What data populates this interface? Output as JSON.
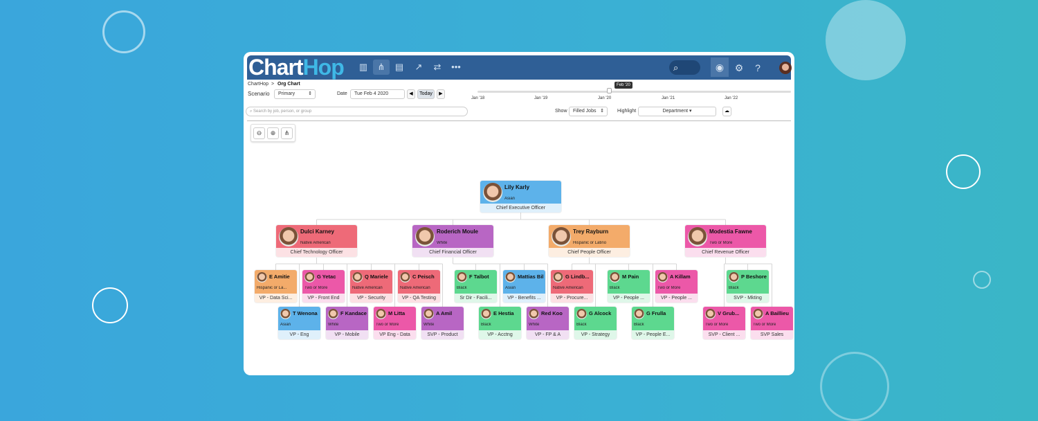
{
  "app": {
    "logo": "ChartHop",
    "nav_icons": [
      "bar-chart-icon",
      "org-chart-icon",
      "table-icon",
      "trend-chart-icon",
      "shuffle-icon",
      "more-icon"
    ],
    "active_nav": 1,
    "right_icons": [
      "eye-icon",
      "gear-icon",
      "help-icon"
    ]
  },
  "breadcrumb": {
    "root": "ChartHop",
    "sep": ">",
    "current": "Org Chart"
  },
  "controls": {
    "scenario_label": "Scenario",
    "scenario_value": "Primary",
    "date_label": "Date",
    "date_value": "Tue Feb 4 2020",
    "prev": "◀",
    "today": "Today",
    "next": "▶",
    "search_placeholder": "Search by job, person, or group",
    "show_label": "Show",
    "show_value": "Filled Jobs",
    "highlight_label": "Highlight",
    "highlight_value": "Department"
  },
  "timeline": {
    "ticks": [
      "Jan '18",
      "Jan '19",
      "Jan '20",
      "Jan '21",
      "Jan '22"
    ],
    "tooltip": "Feb '20"
  },
  "colors": {
    "blue": "#5db2ea",
    "red": "#ee6a78",
    "purple": "#b866c4",
    "orange": "#f3ab6a",
    "pink": "#ec58a8",
    "green": "#5dd88f",
    "header": "#2f5f96"
  },
  "people": [
    {
      "name": "Lily Karly",
      "demo": "Asian",
      "title": "Chief Executive Officer",
      "color": "blue"
    },
    {
      "name": "Dulci Karney",
      "demo": "Native American",
      "title": "Chief Technology Officer",
      "color": "red"
    },
    {
      "name": "Roderich Moule",
      "demo": "White",
      "title": "Chief Financial Officer",
      "color": "purple"
    },
    {
      "name": "Trey Rayburn",
      "demo": "Hispanic or Latino",
      "title": "Chief People Officer",
      "color": "orange"
    },
    {
      "name": "Modestia Fawne",
      "demo": "Two or More",
      "title": "Chief Revenue Officer",
      "color": "pink"
    },
    {
      "name": "E Amitie",
      "demo": "Hispanic or La...",
      "title": "VP - Data Sci...",
      "color": "orange"
    },
    {
      "name": "G Yetac",
      "demo": "Two or More",
      "title": "VP - Front End",
      "color": "pink"
    },
    {
      "name": "Q Mariele",
      "demo": "Native American",
      "title": "VP - Security",
      "color": "red"
    },
    {
      "name": "C Peisch",
      "demo": "Native American",
      "title": "VP - QA Testing",
      "color": "red"
    },
    {
      "name": "F Talbot",
      "demo": "Black",
      "title": "Sr Dir - Facili...",
      "color": "green"
    },
    {
      "name": "Mattias Bil",
      "demo": "Asian",
      "title": "VP - Benefits ...",
      "color": "blue"
    },
    {
      "name": "G Lindb...",
      "demo": "Native American",
      "title": "VP - Procure...",
      "color": "red"
    },
    {
      "name": "M Pain",
      "demo": "Black",
      "title": "VP - People ...",
      "color": "green"
    },
    {
      "name": "A Killam",
      "demo": "Two or More",
      "title": "VP - People ...",
      "color": "pink"
    },
    {
      "name": "P Beshore",
      "demo": "Black",
      "title": "SVP - Mkting",
      "color": "green"
    },
    {
      "name": "T Wenona",
      "demo": "Asian",
      "title": "VP - Eng",
      "color": "blue"
    },
    {
      "name": "F Kandace",
      "demo": "White",
      "title": "VP - Mobile",
      "color": "purple"
    },
    {
      "name": "M Litta",
      "demo": "Two or More",
      "title": "VP Eng - Data",
      "color": "pink"
    },
    {
      "name": "A Amil",
      "demo": "White",
      "title": "SVP - Product",
      "color": "purple"
    },
    {
      "name": "E Hestia",
      "demo": "Black",
      "title": "VP - Acctng",
      "color": "green"
    },
    {
      "name": "Red Koo",
      "demo": "White",
      "title": "VP - FP & A",
      "color": "purple"
    },
    {
      "name": "G Alcock",
      "demo": "Black",
      "title": "VP - Strategy",
      "color": "green"
    },
    {
      "name": "G Frulla",
      "demo": "Black",
      "title": "VP - People E...",
      "color": "green"
    },
    {
      "name": "V Grub...",
      "demo": "Two or More",
      "title": "SVP - Client ...",
      "color": "pink"
    },
    {
      "name": "A Baillieu",
      "demo": "Two or More",
      "title": "SVP Sales",
      "color": "pink"
    }
  ]
}
